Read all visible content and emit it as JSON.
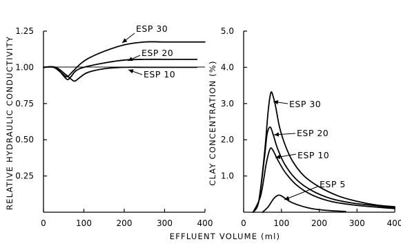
{
  "xlabel": "EFFLUENT VOLUME (ml)",
  "chart_data": [
    {
      "type": "line",
      "ylabel": "RELATIVE HYDRAULIC CONDUCTIVITY",
      "xlim": [
        0,
        400
      ],
      "ylim": [
        0,
        1.25
      ],
      "xticks": [
        0,
        100,
        200,
        300,
        400
      ],
      "yticks": [
        0.25,
        0.5,
        0.75,
        1.0,
        1.25
      ],
      "xtick_labels": [
        "0",
        "100",
        "200",
        "300",
        "400"
      ],
      "ytick_labels": [
        "0.25",
        "0.50",
        "0.75",
        "1.00",
        "1.25"
      ],
      "reference_line": 1.0,
      "series": [
        {
          "name": "ESP 30",
          "x": [
            0,
            25,
            45,
            58,
            72,
            90,
            110,
            150,
            200,
            250,
            300,
            350,
            400
          ],
          "y": [
            1.0,
            1.0,
            0.96,
            0.935,
            0.97,
            1.02,
            1.06,
            1.11,
            1.155,
            1.175,
            1.175,
            1.175,
            1.175
          ]
        },
        {
          "name": "ESP 20",
          "x": [
            0,
            30,
            50,
            60,
            68,
            80,
            100,
            150,
            200,
            250,
            300,
            350,
            380
          ],
          "y": [
            1.0,
            1.0,
            0.94,
            0.915,
            0.935,
            0.975,
            1.0,
            1.03,
            1.05,
            1.055,
            1.055,
            1.055,
            1.055
          ]
        },
        {
          "name": "ESP 10",
          "x": [
            0,
            30,
            55,
            70,
            78,
            90,
            110,
            150,
            200,
            250,
            300,
            350,
            380
          ],
          "y": [
            1.0,
            1.0,
            0.95,
            0.915,
            0.905,
            0.93,
            0.965,
            0.99,
            1.0,
            1.0,
            1.0,
            1.0,
            1.0
          ]
        }
      ],
      "annotations": [
        "ESP 30",
        "ESP 20",
        "ESP 10"
      ]
    },
    {
      "type": "line",
      "ylabel": "CLAY CONCENTRATION (%)",
      "xlim": [
        0,
        400
      ],
      "ylim": [
        0,
        5.0
      ],
      "xticks": [
        0,
        100,
        200,
        300,
        400
      ],
      "yticks": [
        1.0,
        2.0,
        3.0,
        4.0,
        5.0
      ],
      "xtick_labels": [
        "0",
        "100",
        "200",
        "300",
        "400"
      ],
      "ytick_labels": [
        "1.0",
        "2.0",
        "3.0",
        "4.0",
        "5.0"
      ],
      "series": [
        {
          "name": "ESP 30",
          "x": [
            25,
            40,
            55,
            65,
            72,
            78,
            85,
            95,
            110,
            130,
            160,
            200,
            250,
            300,
            350,
            400
          ],
          "y": [
            0,
            0.3,
            1.6,
            2.8,
            3.3,
            3.2,
            2.9,
            2.35,
            1.85,
            1.4,
            1.0,
            0.7,
            0.45,
            0.3,
            0.2,
            0.15
          ]
        },
        {
          "name": "ESP 20",
          "x": [
            25,
            40,
            55,
            62,
            70,
            78,
            90,
            110,
            140,
            180,
            230,
            290,
            350,
            400
          ],
          "y": [
            0,
            0.3,
            1.5,
            2.15,
            2.35,
            2.15,
            1.75,
            1.3,
            0.9,
            0.6,
            0.38,
            0.25,
            0.18,
            0.12
          ]
        },
        {
          "name": "ESP 10",
          "x": [
            25,
            45,
            60,
            70,
            78,
            90,
            110,
            140,
            180,
            230,
            290,
            350,
            400
          ],
          "y": [
            0,
            0.45,
            1.35,
            1.75,
            1.7,
            1.45,
            1.1,
            0.75,
            0.48,
            0.3,
            0.2,
            0.14,
            0.1
          ]
        },
        {
          "name": "ESP 5",
          "x": [
            50,
            65,
            80,
            92,
            100,
            110,
            125,
            150,
            180,
            220,
            270
          ],
          "y": [
            0,
            0.15,
            0.38,
            0.47,
            0.45,
            0.38,
            0.28,
            0.18,
            0.1,
            0.05,
            0.02
          ]
        }
      ],
      "annotations": [
        "ESP 30",
        "ESP 20",
        "ESP 10",
        "ESP 5"
      ]
    }
  ]
}
